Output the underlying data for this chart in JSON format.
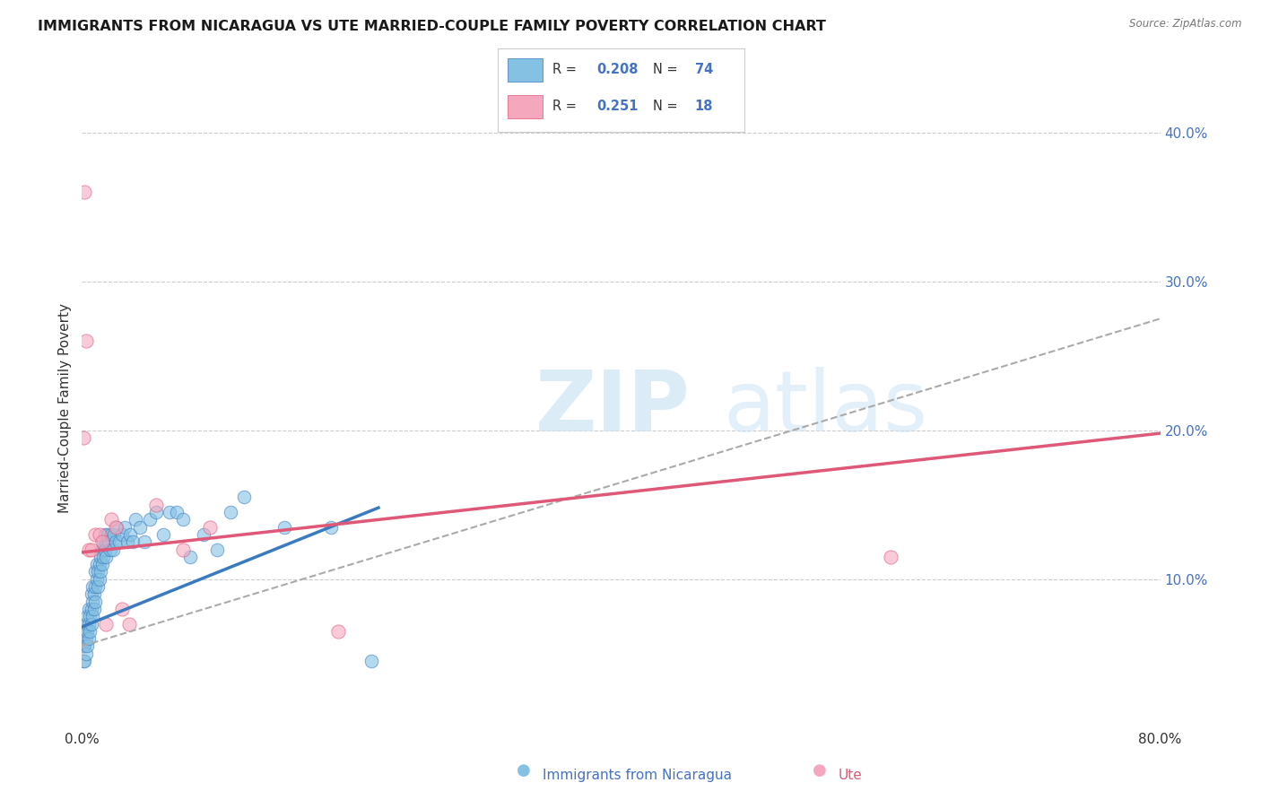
{
  "title": "IMMIGRANTS FROM NICARAGUA VS UTE MARRIED-COUPLE FAMILY POVERTY CORRELATION CHART",
  "source": "Source: ZipAtlas.com",
  "ylabel": "Married-Couple Family Poverty",
  "xlim": [
    0.0,
    0.8
  ],
  "ylim": [
    0.0,
    0.43
  ],
  "xticks": [
    0.0,
    0.8
  ],
  "xticklabels": [
    "0.0%",
    "80.0%"
  ],
  "yticks_right": [
    0.1,
    0.2,
    0.3,
    0.4
  ],
  "ytick_labels_right": [
    "10.0%",
    "20.0%",
    "30.0%",
    "40.0%"
  ],
  "series1_label": "Immigrants from Nicaragua",
  "series2_label": "Ute",
  "color_blue": "#85c1e3",
  "color_blue_dark": "#3a7abf",
  "color_pink": "#f5a7be",
  "color_pink_dark": "#e05878",
  "color_gray_dashed": "#aaaaaa",
  "background": "#ffffff",
  "blue_line": [
    0.0,
    0.068,
    0.22,
    0.148
  ],
  "pink_line": [
    0.0,
    0.118,
    0.8,
    0.198
  ],
  "gray_line": [
    0.0,
    0.055,
    0.8,
    0.275
  ],
  "blue_x": [
    0.001,
    0.001,
    0.002,
    0.002,
    0.002,
    0.003,
    0.003,
    0.003,
    0.004,
    0.004,
    0.004,
    0.005,
    0.005,
    0.005,
    0.006,
    0.006,
    0.007,
    0.007,
    0.007,
    0.008,
    0.008,
    0.008,
    0.009,
    0.009,
    0.01,
    0.01,
    0.01,
    0.011,
    0.011,
    0.012,
    0.012,
    0.013,
    0.013,
    0.014,
    0.014,
    0.015,
    0.015,
    0.016,
    0.016,
    0.017,
    0.017,
    0.018,
    0.018,
    0.019,
    0.02,
    0.021,
    0.022,
    0.023,
    0.024,
    0.025,
    0.026,
    0.028,
    0.03,
    0.032,
    0.034,
    0.036,
    0.038,
    0.04,
    0.043,
    0.046,
    0.05,
    0.055,
    0.06,
    0.065,
    0.07,
    0.075,
    0.08,
    0.09,
    0.1,
    0.11,
    0.12,
    0.15,
    0.185,
    0.215
  ],
  "blue_y": [
    0.045,
    0.055,
    0.045,
    0.055,
    0.065,
    0.05,
    0.06,
    0.07,
    0.055,
    0.065,
    0.075,
    0.06,
    0.07,
    0.08,
    0.065,
    0.075,
    0.07,
    0.08,
    0.09,
    0.075,
    0.085,
    0.095,
    0.08,
    0.09,
    0.085,
    0.095,
    0.105,
    0.1,
    0.11,
    0.095,
    0.105,
    0.1,
    0.11,
    0.105,
    0.115,
    0.11,
    0.12,
    0.115,
    0.125,
    0.12,
    0.13,
    0.125,
    0.115,
    0.13,
    0.125,
    0.12,
    0.13,
    0.12,
    0.13,
    0.125,
    0.135,
    0.125,
    0.13,
    0.135,
    0.125,
    0.13,
    0.125,
    0.14,
    0.135,
    0.125,
    0.14,
    0.145,
    0.13,
    0.145,
    0.145,
    0.14,
    0.115,
    0.13,
    0.12,
    0.145,
    0.155,
    0.135,
    0.135,
    0.045
  ],
  "pink_x": [
    0.001,
    0.002,
    0.003,
    0.005,
    0.007,
    0.01,
    0.013,
    0.015,
    0.018,
    0.022,
    0.025,
    0.03,
    0.035,
    0.055,
    0.075,
    0.095,
    0.19,
    0.6
  ],
  "pink_y": [
    0.195,
    0.36,
    0.26,
    0.12,
    0.12,
    0.13,
    0.13,
    0.125,
    0.07,
    0.14,
    0.135,
    0.08,
    0.07,
    0.15,
    0.12,
    0.135,
    0.065,
    0.115
  ]
}
